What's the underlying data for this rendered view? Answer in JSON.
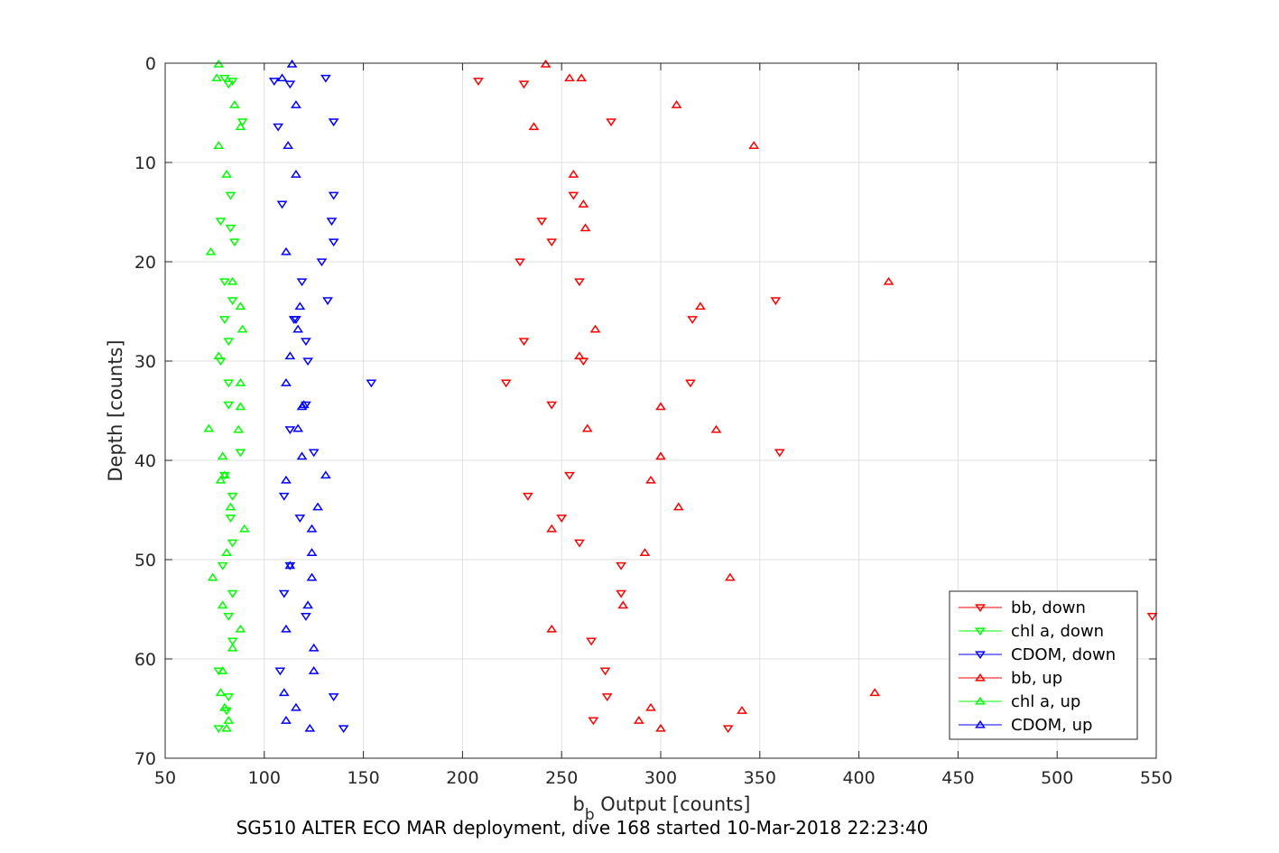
{
  "chart_data": {
    "type": "scatter",
    "xlabel": "b",
    "xlabel_sub": "b",
    "xlabel_suffix": " Output [counts]",
    "ylabel": "Depth [counts]",
    "subtitle": "SG510 ALTER ECO MAR deployment, dive 168 started 10-Mar-2018 22:23:40",
    "xlim": [
      50,
      550
    ],
    "ylim": [
      0,
      70
    ],
    "y_reversed": true,
    "grid": true,
    "legend_position": "bottom-right",
    "xticks": [
      "50",
      "100",
      "150",
      "200",
      "250",
      "300",
      "350",
      "400",
      "450",
      "500",
      "550"
    ],
    "yticks": [
      "0",
      "10",
      "20",
      "30",
      "40",
      "50",
      "60",
      "70"
    ],
    "series": [
      {
        "name": "bb, down",
        "color": "#ff0000",
        "marker": "triangle-down",
        "x": [
          208,
          231,
          275,
          256,
          240,
          245,
          229,
          259,
          358,
          316,
          231,
          261,
          222,
          315,
          245,
          360,
          254,
          233,
          250,
          259,
          280,
          280,
          548,
          265,
          272,
          273,
          266,
          334
        ],
        "y": [
          1.8,
          2.1,
          5.9,
          13.3,
          15.9,
          18.0,
          20.0,
          22.0,
          23.9,
          25.8,
          28.0,
          30.0,
          32.2,
          32.2,
          34.4,
          39.2,
          41.5,
          43.6,
          45.8,
          48.3,
          50.6,
          53.4,
          55.7,
          58.2,
          61.2,
          63.8,
          66.2,
          67.0
        ]
      },
      {
        "name": "chl a, down",
        "color": "#00ff00",
        "marker": "triangle-down",
        "x": [
          80,
          84,
          82,
          89,
          83,
          78,
          83,
          85,
          80,
          84,
          80,
          82,
          78,
          82,
          82,
          83,
          84,
          88,
          80,
          84,
          79,
          84,
          82,
          84,
          77,
          82,
          81,
          77
        ],
        "y": [
          1.5,
          1.8,
          2.1,
          5.9,
          13.3,
          15.9,
          16.6,
          18.0,
          22.0,
          23.9,
          25.8,
          28.0,
          30.0,
          32.2,
          34.4,
          45.8,
          43.6,
          39.2,
          41.5,
          48.3,
          50.6,
          53.4,
          55.7,
          58.2,
          61.2,
          63.8,
          65.2,
          67.0
        ]
      },
      {
        "name": "CDOM, down",
        "color": "#0000ff",
        "marker": "triangle-down",
        "x": [
          105,
          113,
          131,
          135,
          107,
          135,
          109,
          134,
          135,
          129,
          119,
          115,
          132,
          116,
          121,
          122,
          154,
          121,
          113,
          125,
          110,
          118,
          113,
          110,
          121,
          108,
          135,
          140
        ],
        "y": [
          1.8,
          2.1,
          1.5,
          5.9,
          6.4,
          13.3,
          14.2,
          15.9,
          18.0,
          20.0,
          22.0,
          25.8,
          23.9,
          25.8,
          28.0,
          30.0,
          32.2,
          34.4,
          36.9,
          39.2,
          43.6,
          45.8,
          50.6,
          53.4,
          55.7,
          61.2,
          63.8,
          67.0
        ]
      },
      {
        "name": "bb, up",
        "color": "#ff0000",
        "marker": "triangle-up",
        "x": [
          242,
          254,
          260,
          308,
          236,
          347,
          256,
          261,
          262,
          415,
          320,
          267,
          259,
          300,
          263,
          328,
          300,
          295,
          309,
          245,
          292,
          335,
          281,
          245,
          408,
          295,
          341,
          289,
          300
        ],
        "y": [
          0.1,
          1.5,
          1.5,
          4.2,
          6.4,
          8.3,
          11.2,
          14.2,
          16.6,
          22.0,
          24.5,
          26.8,
          29.5,
          34.6,
          36.8,
          36.9,
          39.6,
          42.0,
          44.7,
          46.9,
          49.3,
          51.8,
          54.6,
          57.0,
          63.4,
          64.9,
          65.2,
          66.2,
          67.0
        ]
      },
      {
        "name": "chl a, up",
        "color": "#00ff00",
        "marker": "triangle-up",
        "x": [
          77,
          76,
          85,
          88,
          77,
          81,
          73,
          84,
          88,
          89,
          77,
          88,
          88,
          72,
          87,
          79,
          78,
          80,
          83,
          90,
          81,
          74,
          79,
          88,
          84,
          79,
          78,
          80,
          82,
          81
        ],
        "y": [
          0.1,
          1.5,
          4.2,
          6.4,
          8.3,
          11.2,
          19.0,
          22.0,
          24.5,
          26.8,
          29.5,
          32.2,
          34.6,
          36.8,
          36.9,
          39.6,
          42.0,
          41.5,
          44.7,
          46.9,
          49.3,
          51.8,
          54.6,
          57.0,
          58.9,
          61.2,
          63.4,
          64.9,
          66.2,
          67.0
        ]
      },
      {
        "name": "CDOM, up",
        "color": "#0000ff",
        "marker": "triangle-up",
        "x": [
          114,
          109,
          116,
          112,
          116,
          111,
          118,
          117,
          119,
          113,
          111,
          120,
          117,
          119,
          131,
          111,
          127,
          124,
          124,
          113,
          124,
          122,
          111,
          125,
          125,
          110,
          116,
          111,
          123
        ],
        "y": [
          0.1,
          1.5,
          4.2,
          8.3,
          11.2,
          19.0,
          24.5,
          26.8,
          34.6,
          29.5,
          32.2,
          34.4,
          36.8,
          39.6,
          41.5,
          42.0,
          44.7,
          46.9,
          49.3,
          50.6,
          51.8,
          54.6,
          57.0,
          58.9,
          61.2,
          63.4,
          64.9,
          66.2,
          67.0
        ]
      }
    ]
  }
}
